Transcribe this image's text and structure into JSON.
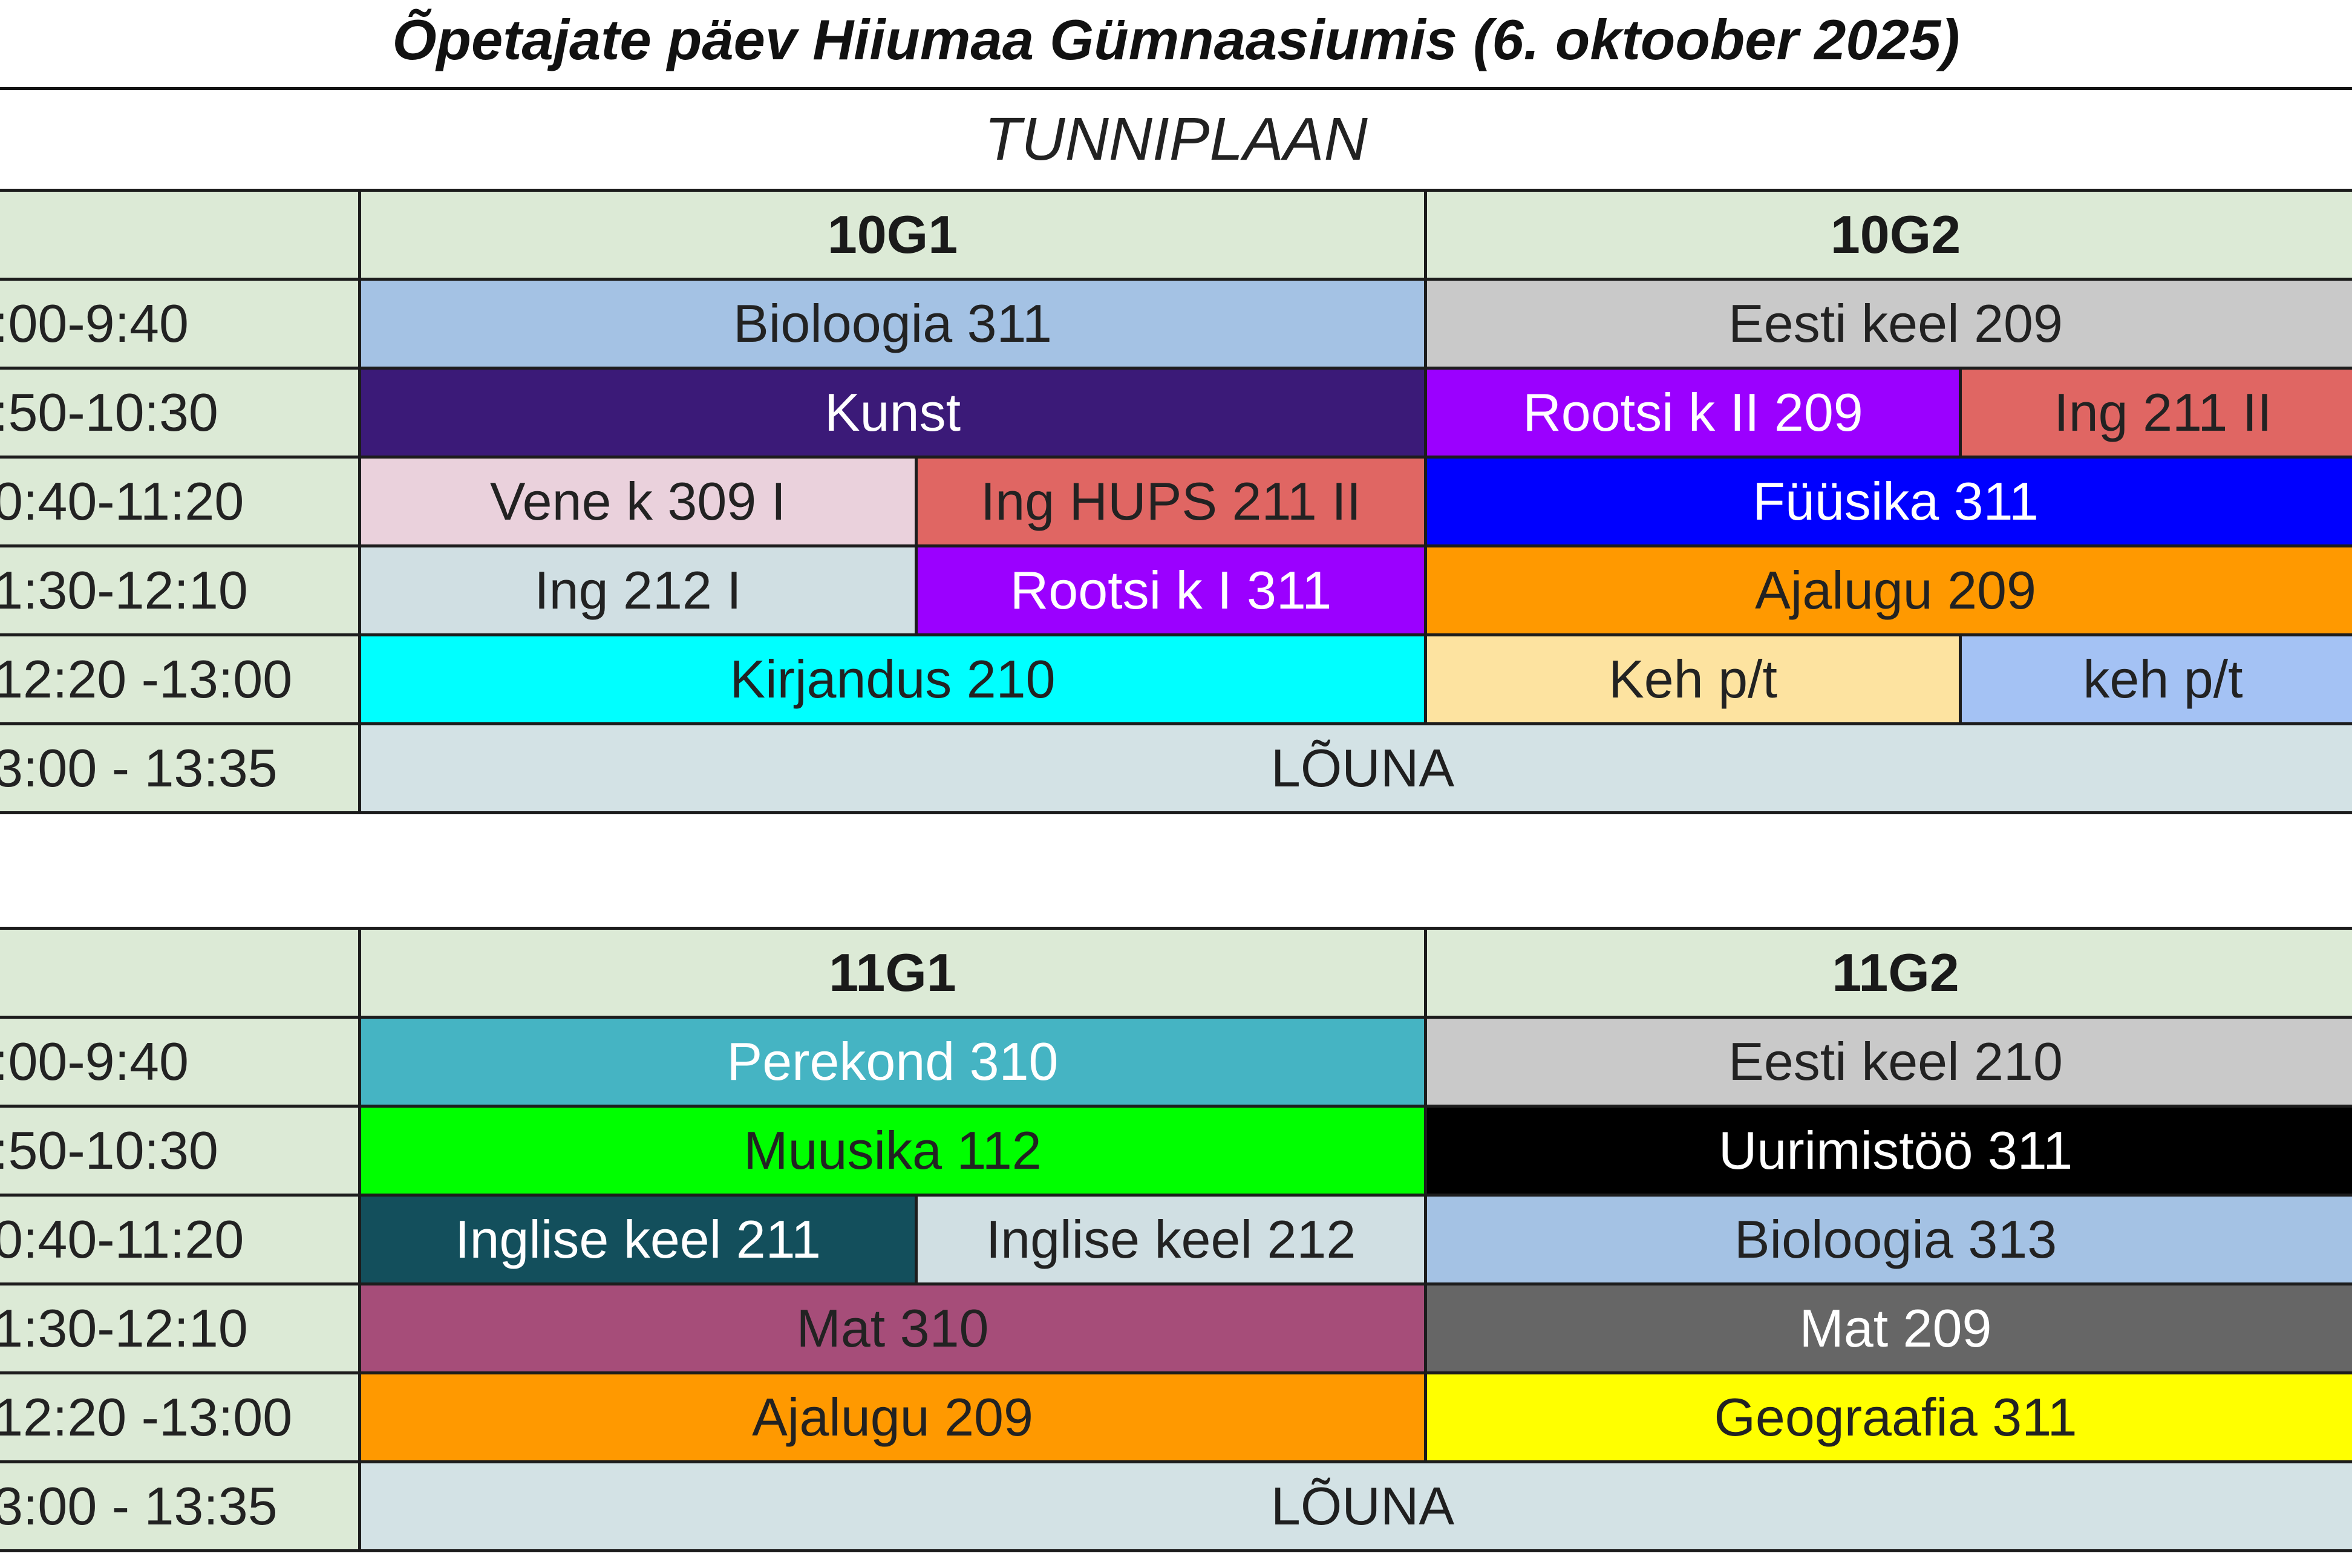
{
  "header": {
    "title": "Õpetajate päev Hiiumaa Gümnaasiumis (6. oktoober 2025)",
    "subtitle": "TUNNIPLAAN"
  },
  "colors": {
    "header_bg": "#dcead6",
    "lunch_bg": "#d3e2e5",
    "grid_line": "#1c1c1c"
  },
  "timetables": [
    {
      "classes": [
        "10G1",
        "10G2"
      ],
      "times": [
        ":00-9:40",
        ":50-10:30",
        "0:40-11:20",
        "1:30-12:10",
        "12:20 -13:00",
        "3:00 - 13:35"
      ],
      "rows": [
        [
          {
            "text": "Bioloogia 311",
            "span": 2,
            "bg": "#a4c2e4",
            "fg": "#222222"
          },
          {
            "text": "Eesti keel 209",
            "span": 2,
            "bg": "#c9c9c9",
            "fg": "#222222"
          }
        ],
        [
          {
            "text": "Kunst",
            "span": 2,
            "bg": "#3b1a78",
            "fg": "#ffffff"
          },
          {
            "text": "Rootsi k II 209",
            "span": 1,
            "bg": "#9b00ff",
            "fg": "#ffffff"
          },
          {
            "text": "Ing  211 II",
            "span": 1,
            "bg": "#e06663",
            "fg": "#222222"
          }
        ],
        [
          {
            "text": "Vene k 309 I",
            "span": 1,
            "bg": "#ead1dc",
            "fg": "#222222"
          },
          {
            "text": "Ing HUPS 211 II",
            "span": 1,
            "bg": "#e06663",
            "fg": "#222222"
          },
          {
            "text": "Füüsika 311",
            "span": 2,
            "bg": "#0000ff",
            "fg": "#ffffff"
          }
        ],
        [
          {
            "text": "Ing 212 I",
            "span": 1,
            "bg": "#d0dfe3",
            "fg": "#222222"
          },
          {
            "text": "Rootsi k I 311",
            "span": 1,
            "bg": "#9b00ff",
            "fg": "#ffffff"
          },
          {
            "text": "Ajalugu 209",
            "span": 2,
            "bg": "#ff9900",
            "fg": "#222222"
          }
        ],
        [
          {
            "text": "Kirjandus 210",
            "span": 2,
            "bg": "#00ffff",
            "fg": "#222222"
          },
          {
            "text": "Keh p/t",
            "span": 1,
            "bg": "#fde3a0",
            "fg": "#222222"
          },
          {
            "text": "keh p/t",
            "span": 1,
            "bg": "#a4c2f4",
            "fg": "#222222"
          }
        ]
      ],
      "lunch": "LÕUNA"
    },
    {
      "classes": [
        "11G1",
        "11G2"
      ],
      "times": [
        ":00-9:40",
        ":50-10:30",
        "0:40-11:20",
        "1:30-12:10",
        "12:20 -13:00",
        "3:00 - 13:35"
      ],
      "rows": [
        [
          {
            "text": "Perekond 310",
            "span": 2,
            "bg": "#45b4c3",
            "fg": "#ffffff"
          },
          {
            "text": "Eesti keel 210",
            "span": 2,
            "bg": "#c9c9c9",
            "fg": "#222222"
          }
        ],
        [
          {
            "text": "Muusika 112",
            "span": 2,
            "bg": "#00ff00",
            "fg": "#222222"
          },
          {
            "text": "Uurimistöö 311",
            "span": 2,
            "bg": "#000000",
            "fg": "#ffffff"
          }
        ],
        [
          {
            "text": "Inglise keel 211",
            "span": 1,
            "bg": "#134f5c",
            "fg": "#ffffff"
          },
          {
            "text": "Inglise keel 212",
            "span": 1,
            "bg": "#d0dfe3",
            "fg": "#222222"
          },
          {
            "text": "Bioloogia 313",
            "span": 2,
            "bg": "#a4c2e4",
            "fg": "#222222"
          }
        ],
        [
          {
            "text": "Mat  310",
            "span": 2,
            "bg": "#a64d79",
            "fg": "#222222"
          },
          {
            "text": "Mat  209",
            "span": 2,
            "bg": "#666666",
            "fg": "#ffffff"
          }
        ],
        [
          {
            "text": "Ajalugu 209",
            "span": 2,
            "bg": "#ff9900",
            "fg": "#222222"
          },
          {
            "text": "Geograafia 311",
            "span": 2,
            "bg": "#ffff00",
            "fg": "#222222"
          }
        ]
      ],
      "lunch": "LÕUNA"
    }
  ]
}
